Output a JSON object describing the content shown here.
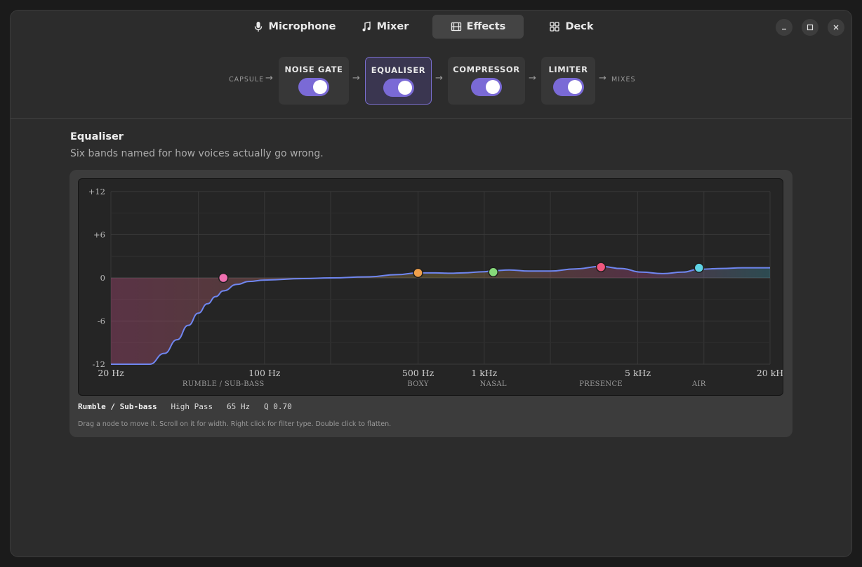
{
  "tabs": [
    {
      "label": "Microphone",
      "icon": "microphone-icon",
      "active": false
    },
    {
      "label": "Mixer",
      "icon": "music-note-icon",
      "active": false
    },
    {
      "label": "Effects",
      "icon": "film-icon",
      "active": true
    },
    {
      "label": "Deck",
      "icon": "grid-icon",
      "active": false
    }
  ],
  "window_controls": [
    "minimize-icon",
    "maximize-icon",
    "close-icon"
  ],
  "pipeline": {
    "input_label": "CAPSULE",
    "output_label": "MIXES",
    "arrow": "→",
    "stages": [
      {
        "label": "NOISE GATE",
        "enabled": true,
        "selected": false
      },
      {
        "label": "EQUALISER",
        "enabled": true,
        "selected": true
      },
      {
        "label": "COMPRESSOR",
        "enabled": true,
        "selected": false
      },
      {
        "label": "LIMITER",
        "enabled": true,
        "selected": false
      }
    ]
  },
  "equaliser": {
    "title": "Equaliser",
    "subtitle": "Six bands named for how voices actually go wrong.",
    "info": {
      "band": "Rumble / Sub-bass",
      "filter": "High Pass",
      "freq": "65 Hz",
      "q": "Q 0.70"
    },
    "hint": "Drag a node to move it. Scroll on it for width. Right click for filter type. Double click to flatten."
  },
  "chart_data": {
    "type": "line",
    "x_scale": "log",
    "xlim": [
      20,
      20000
    ],
    "ylim": [
      -12,
      12
    ],
    "xlabel": "",
    "ylabel": "",
    "x_ticks": [
      {
        "value": 20,
        "label": "20 Hz"
      },
      {
        "value": 100,
        "label": "100 Hz"
      },
      {
        "value": 500,
        "label": "500 Hz"
      },
      {
        "value": 1000,
        "label": "1 kHz"
      },
      {
        "value": 5000,
        "label": "5 kHz"
      },
      {
        "value": 20000,
        "label": "20 kH"
      }
    ],
    "y_ticks": [
      {
        "value": 12,
        "label": "+12"
      },
      {
        "value": 6,
        "label": "+6"
      },
      {
        "value": 0,
        "label": "0"
      },
      {
        "value": -6,
        "label": "-6"
      },
      {
        "value": -12,
        "label": "-12"
      }
    ],
    "bands": [
      {
        "name": "RUMBLE / SUB-BASS",
        "freq": 65,
        "gain": 0,
        "color": "#f06fb0"
      },
      {
        "name": "BOXY",
        "freq": 500,
        "gain": 0.7,
        "color": "#f0a04b"
      },
      {
        "name": "NASAL",
        "freq": 1100,
        "gain": 0.8,
        "color": "#86d97a"
      },
      {
        "name": "PRESENCE",
        "freq": 3400,
        "gain": 1.5,
        "color": "#f0577e"
      },
      {
        "name": "AIR",
        "freq": 9500,
        "gain": 1.4,
        "color": "#5fd4e6"
      }
    ],
    "curve": [
      [
        20,
        -12
      ],
      [
        30,
        -12
      ],
      [
        35,
        -10.5
      ],
      [
        40,
        -8.6
      ],
      [
        45,
        -6.6
      ],
      [
        50,
        -4.9
      ],
      [
        55,
        -3.6
      ],
      [
        60,
        -2.6
      ],
      [
        65,
        -1.8
      ],
      [
        75,
        -0.9
      ],
      [
        85,
        -0.5
      ],
      [
        100,
        -0.3
      ],
      [
        150,
        -0.1
      ],
      [
        200,
        0
      ],
      [
        300,
        0.15
      ],
      [
        400,
        0.45
      ],
      [
        500,
        0.7
      ],
      [
        600,
        0.7
      ],
      [
        700,
        0.65
      ],
      [
        800,
        0.7
      ],
      [
        1000,
        0.85
      ],
      [
        1100,
        1.0
      ],
      [
        1300,
        1.1
      ],
      [
        1600,
        0.95
      ],
      [
        2000,
        0.95
      ],
      [
        2600,
        1.25
      ],
      [
        3400,
        1.6
      ],
      [
        4200,
        1.3
      ],
      [
        5200,
        0.8
      ],
      [
        6500,
        0.6
      ],
      [
        8000,
        0.8
      ],
      [
        9500,
        1.2
      ],
      [
        12000,
        1.3
      ],
      [
        15000,
        1.4
      ],
      [
        20000,
        1.4
      ]
    ],
    "curve_color": "#6f86f0",
    "grid": true
  }
}
